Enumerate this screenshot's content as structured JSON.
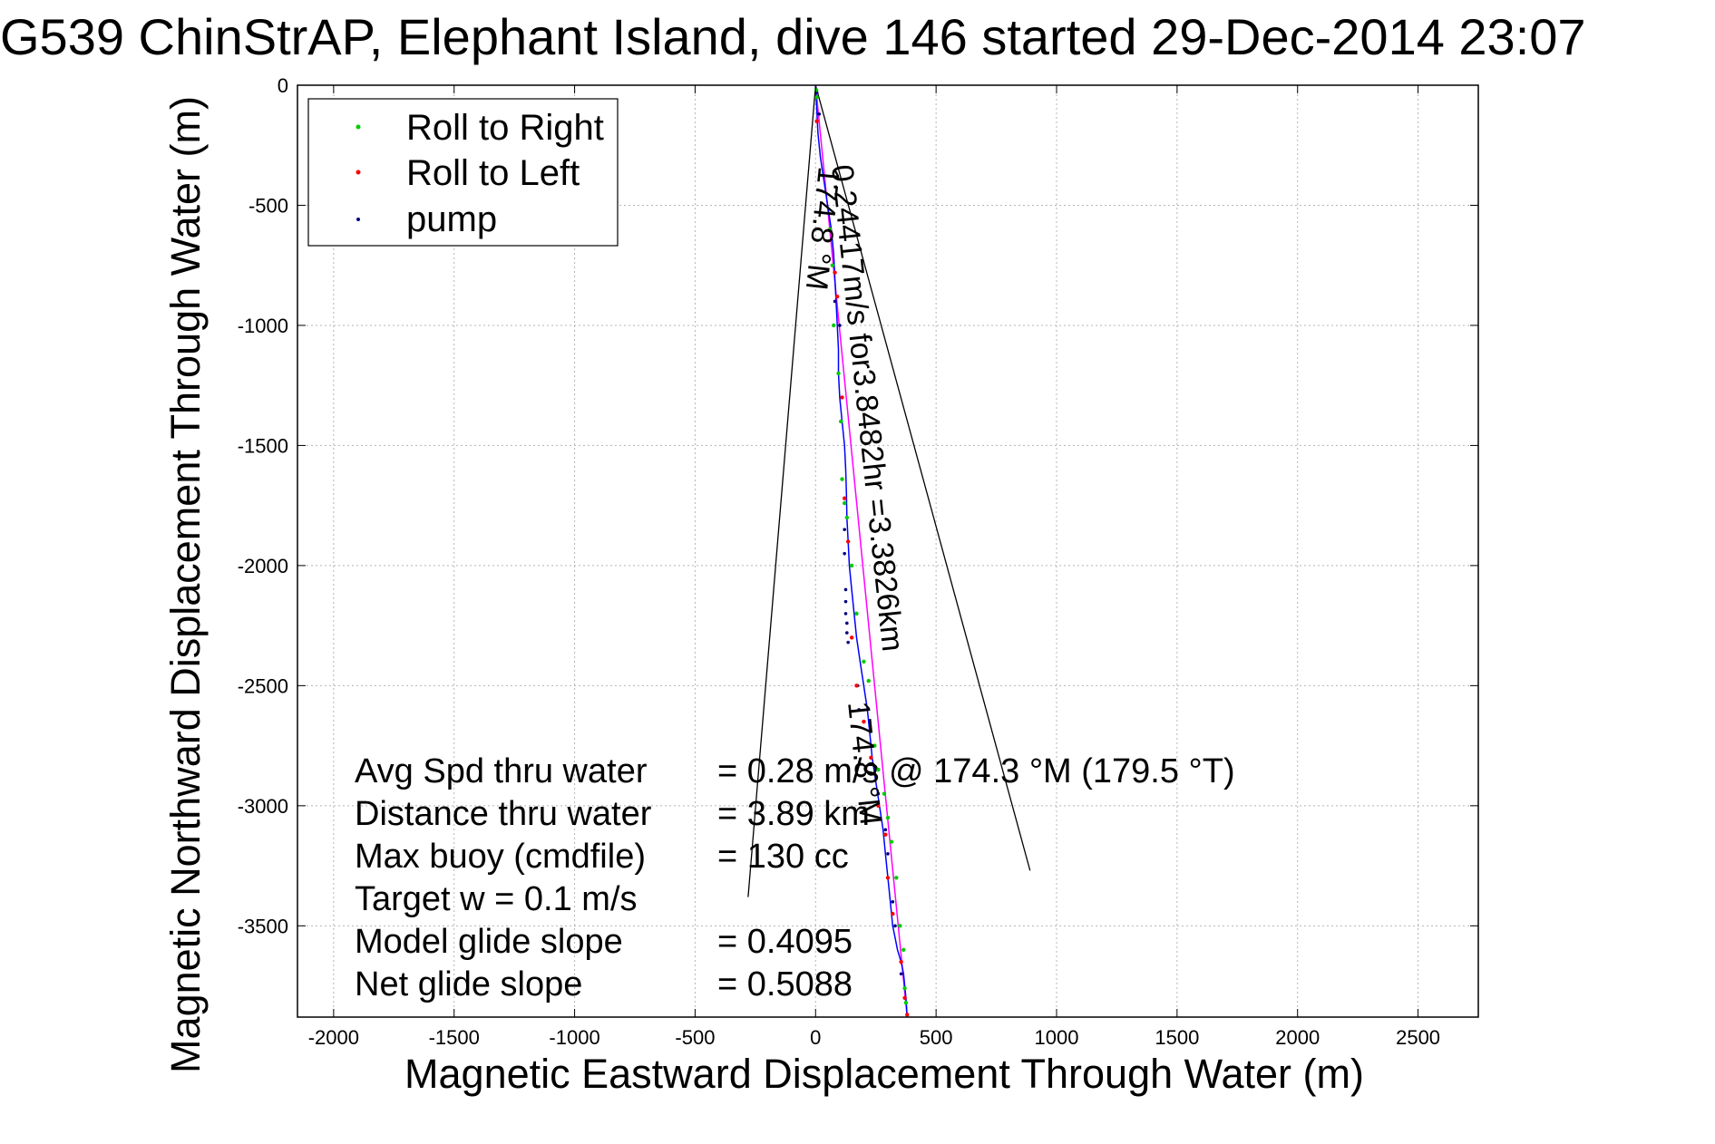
{
  "chart_data": {
    "type": "line",
    "title": "G539 ChinStrAP, Elephant Island, dive 146 started 29-Dec-2014 23:07",
    "xlabel": "Magnetic Eastward Displacement Through Water (m)",
    "ylabel": "Magnetic Northward Displacement Through Water (m)",
    "xlim": [
      -2150,
      2750
    ],
    "ylim": [
      -3880,
      0
    ],
    "grid": true,
    "legend_position": "top-left",
    "xticks": [
      -2000,
      -1500,
      -1000,
      -500,
      0,
      500,
      1000,
      1500,
      2000,
      2500
    ],
    "yticks": [
      0,
      -500,
      -1000,
      -1500,
      -2000,
      -2500,
      -3000,
      -3500
    ],
    "xtick_labels": [
      "-2000",
      "-1500",
      "-1000",
      "-500",
      "0",
      "500",
      "1000",
      "1500",
      "2000",
      "2500"
    ],
    "ytick_labels": [
      "0",
      "-500",
      "-1000",
      "-1500",
      "-2000",
      "-2500",
      "-3000",
      "-3500"
    ],
    "colors": {
      "track": "#0000ff",
      "heading_line": "#ff00ff",
      "roll_right": "#00cc00",
      "roll_left": "#ff0000",
      "pump": "#000080",
      "cone_lines": "#000000",
      "grid": "#b4b4b4"
    },
    "legend": {
      "roll_right": "Roll to Right",
      "roll_left": "Roll to Left",
      "pump": "pump"
    },
    "track": {
      "x": [
        0,
        5,
        10,
        20,
        35,
        50,
        65,
        75,
        80,
        85,
        90,
        95,
        95,
        100,
        110,
        120,
        125,
        128,
        130,
        135,
        140,
        150,
        160,
        170,
        185,
        200,
        215,
        225,
        235,
        250,
        265,
        280,
        290,
        300,
        310,
        320,
        330,
        340,
        355,
        365,
        370,
        375,
        380
      ],
      "y": [
        0,
        -100,
        -200,
        -300,
        -400,
        -500,
        -600,
        -700,
        -800,
        -900,
        -1000,
        -1100,
        -1200,
        -1300,
        -1400,
        -1500,
        -1600,
        -1700,
        -1800,
        -1900,
        -2000,
        -2100,
        -2200,
        -2300,
        -2400,
        -2500,
        -2600,
        -2700,
        -2800,
        -2900,
        -3000,
        -3100,
        -3200,
        -3300,
        -3400,
        -3500,
        -3550,
        -3600,
        -3650,
        -3700,
        -3750,
        -3800,
        -3880
      ]
    },
    "heading_line": {
      "x": [
        0,
        380
      ],
      "y": [
        0,
        -3880
      ]
    },
    "cone": {
      "left": {
        "x": [
          0,
          -280
        ],
        "y": [
          0,
          -3380
        ]
      },
      "right": {
        "x": [
          0,
          890
        ],
        "y": [
          0,
          -3270
        ]
      }
    },
    "roll_right_points": {
      "x": [
        3,
        5,
        60,
        70,
        75,
        95,
        105,
        110,
        120,
        130,
        150,
        170,
        200,
        220,
        245,
        260,
        285,
        300,
        315,
        335,
        350,
        365,
        370,
        375
      ],
      "y": [
        -20,
        -50,
        -600,
        -750,
        -1000,
        -1200,
        -1400,
        -1640,
        -1740,
        -1800,
        -2000,
        -2200,
        -2400,
        -2480,
        -2750,
        -2850,
        -2950,
        -3050,
        -3150,
        -3300,
        -3500,
        -3600,
        -3760,
        -3820
      ]
    },
    "roll_left_points": {
      "x": [
        5,
        60,
        80,
        90,
        110,
        120,
        135,
        150,
        170,
        200,
        230,
        260,
        290,
        300,
        320,
        355,
        370,
        380
      ],
      "y": [
        -150,
        -600,
        -780,
        -880,
        -1300,
        -1720,
        -1900,
        -2300,
        -2500,
        -2650,
        -2800,
        -3000,
        -3120,
        -3300,
        -3450,
        -3650,
        -3800,
        -3870
      ]
    },
    "pump_points": {
      "x": [
        5,
        15,
        60,
        80,
        100,
        120,
        120,
        125,
        125,
        125,
        130,
        130,
        135,
        175,
        180,
        260,
        290,
        300,
        320,
        330,
        355
      ],
      "y": [
        -30,
        -120,
        -600,
        -900,
        -1000,
        -1850,
        -1950,
        -2100,
        -2150,
        -2200,
        -2240,
        -2280,
        -2320,
        -2500,
        -2600,
        -2950,
        -3100,
        -3200,
        -3400,
        -3500,
        -3700
      ]
    },
    "annotations": {
      "rotated_speed": "0.24417m/s for3.8482hr =3.3826km",
      "heading_top": "174.8 °M",
      "heading_mid": "174.8 °M"
    },
    "stats": [
      {
        "label": "Avg Spd thru water",
        "value": "=  0.28 m/s @ 174.3 °M (179.5 °T)"
      },
      {
        "label": "Distance thru water",
        "value": "=  3.89 km"
      },
      {
        "label": "Max buoy (cmdfile)",
        "value": "= 130 cc"
      },
      {
        "label": "Target w    = 0.1 m/s",
        "value": ""
      },
      {
        "label": "Model glide slope",
        "value": "= 0.4095"
      },
      {
        "label": "Net glide slope",
        "value": "= 0.5088"
      }
    ]
  }
}
